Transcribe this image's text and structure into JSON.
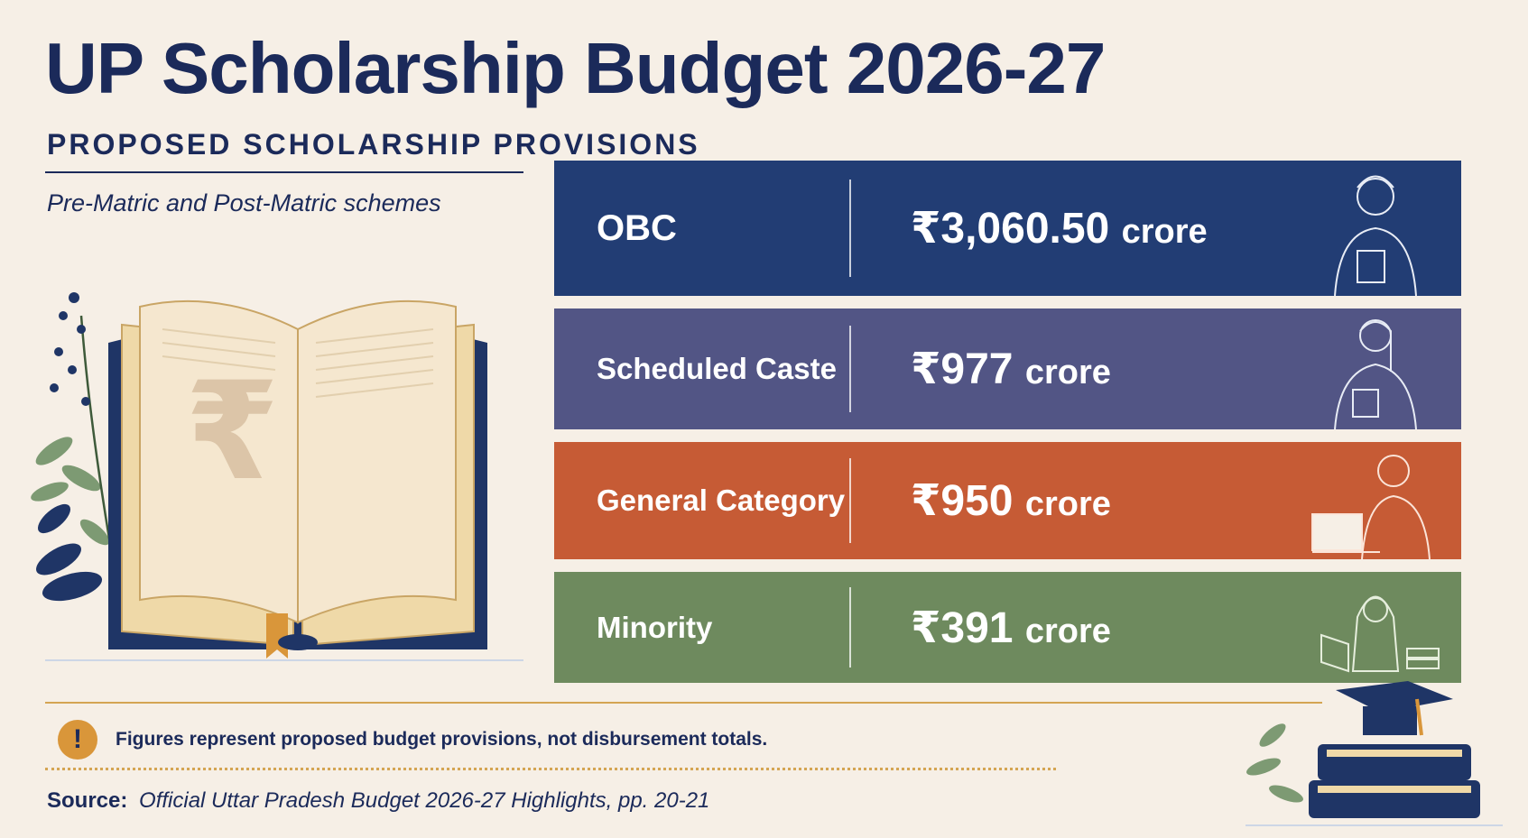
{
  "header": {
    "title": "UP Scholarship Budget 2026-27",
    "subtitle": "PROPOSED SCHOLARSHIP PROVISIONS",
    "tagline": "Pre-Matric and Post-Matric schemes"
  },
  "rows": [
    {
      "category": "OBC",
      "amount": "₹3,060.50",
      "unit": "crore",
      "color": "#223d74"
    },
    {
      "category": "Scheduled Caste",
      "amount": "₹977",
      "unit": "crore",
      "color": "#525585"
    },
    {
      "category": "General Category",
      "amount": "₹950",
      "unit": "crore",
      "color": "#c65b35"
    },
    {
      "category": "Minority",
      "amount": "₹391",
      "unit": "crore",
      "color": "#6e8a5e"
    }
  ],
  "book_symbol": "₹",
  "notice": {
    "icon_glyph": "!",
    "text": "Figures represent proposed budget provisions, not disbursement totals."
  },
  "source": {
    "label": "Source:",
    "reference": "Official Uttar Pradesh Budget 2026-27 Highlights, pp. 20-21"
  },
  "icons": [
    "warning-icon",
    "open-book-illustration",
    "graduation-cap-books-illustration",
    "student-illustration"
  ]
}
